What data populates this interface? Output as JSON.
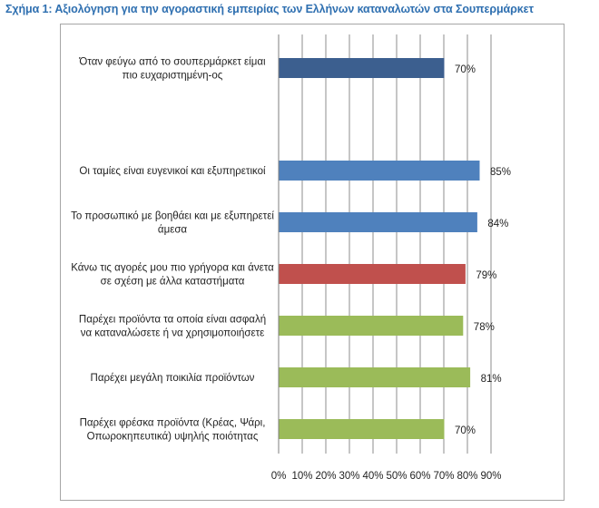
{
  "chart_data": {
    "type": "bar",
    "orientation": "horizontal",
    "title": "Σχήμα 1: Αξιολόγηση για την αγοραστική εμπειρίας των Ελλήνων καταναλωτών στα Σουπερμάρκετ",
    "xlabel": "",
    "ylabel": "",
    "xlim": [
      0,
      90
    ],
    "ticks": [
      "0%",
      "10%",
      "20%",
      "30%",
      "40%",
      "50%",
      "60%",
      "70%",
      "80%",
      "90%"
    ],
    "grid": true,
    "categories": [
      "Όταν φεύγω από το σουπερμάρκετ είμαι πιο ευχαριστημένη-ος",
      "Οι ταμίες είναι ευγενικοί και εξυπηρετικοί",
      "Το προσωπικό με βοηθάει και με εξυπηρετεί άμεσα",
      "Κάνω τις αγορές μου πιο γρήγορα και άνετα σε σχέση με άλλα καταστήματα",
      "Παρέχει προϊόντα τα οποία είναι ασφαλή να καταναλώσετε ή να χρησιμοποιήσετε",
      "Παρέχει μεγάλη ποικιλία προϊόντων",
      "Παρέχει φρέσκα προϊόντα (Κρέας, Ψάρι, Οπωροκηπευτικά) υψηλής ποιότητας"
    ],
    "label_lines": [
      [
        "Όταν φεύγω από το σουπερμάρκετ είμαι",
        "πιο ευχαριστημένη-ος"
      ],
      [
        "Οι ταμίες είναι ευγενικοί και εξυπηρετικοί"
      ],
      [
        "Το προσωπικό με βοηθάει και με εξυπηρετεί",
        "άμεσα"
      ],
      [
        "Κάνω τις αγορές μου πιο γρήγορα και άνετα",
        "σε σχέση με άλλα καταστήματα"
      ],
      [
        "Παρέχει προϊόντα τα οποία είναι ασφαλή",
        "να καταναλώσετε ή να χρησιμοποιήσετε"
      ],
      [
        "Παρέχει μεγάλη ποικιλία προϊόντων"
      ],
      [
        "Παρέχει φρέσκα προϊόντα (Κρέας, Ψάρι,",
        "Οπωροκηπευτικά) υψηλής ποιότητας"
      ]
    ],
    "values": [
      70,
      85,
      84,
      79,
      78,
      81,
      70
    ],
    "value_labels": [
      "70%",
      "85%",
      "84%",
      "79%",
      "78%",
      "81%",
      "70%"
    ],
    "colors": [
      "#3c5f8f",
      "#4f81bd",
      "#4f81bd",
      "#c0504d",
      "#9bbb59",
      "#9bbb59",
      "#9bbb59"
    ]
  }
}
